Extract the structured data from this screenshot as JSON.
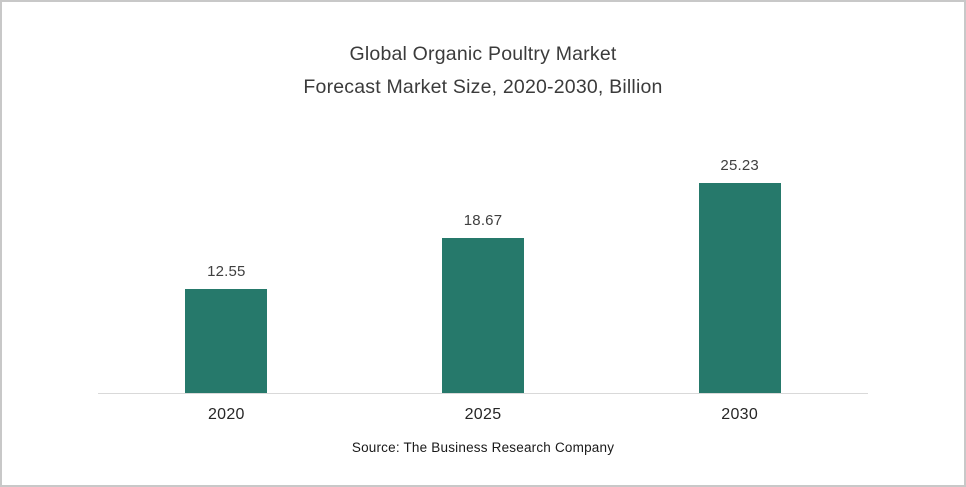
{
  "chart_data": {
    "type": "bar",
    "title_line1": "Global Organic Poultry Market",
    "title_line2": "Forecast Market Size, 2020-2030, Billion",
    "categories": [
      "2020",
      "2025",
      "2030"
    ],
    "values": [
      12.55,
      18.67,
      25.23
    ],
    "value_labels": [
      "12.55",
      "18.67",
      "25.23"
    ],
    "ylim": [
      0,
      26
    ],
    "grid": false,
    "legend": false,
    "bar_color": "#26796b",
    "axis_line_color": "#d9d9d9",
    "source": "Source: The Business Research Company"
  }
}
